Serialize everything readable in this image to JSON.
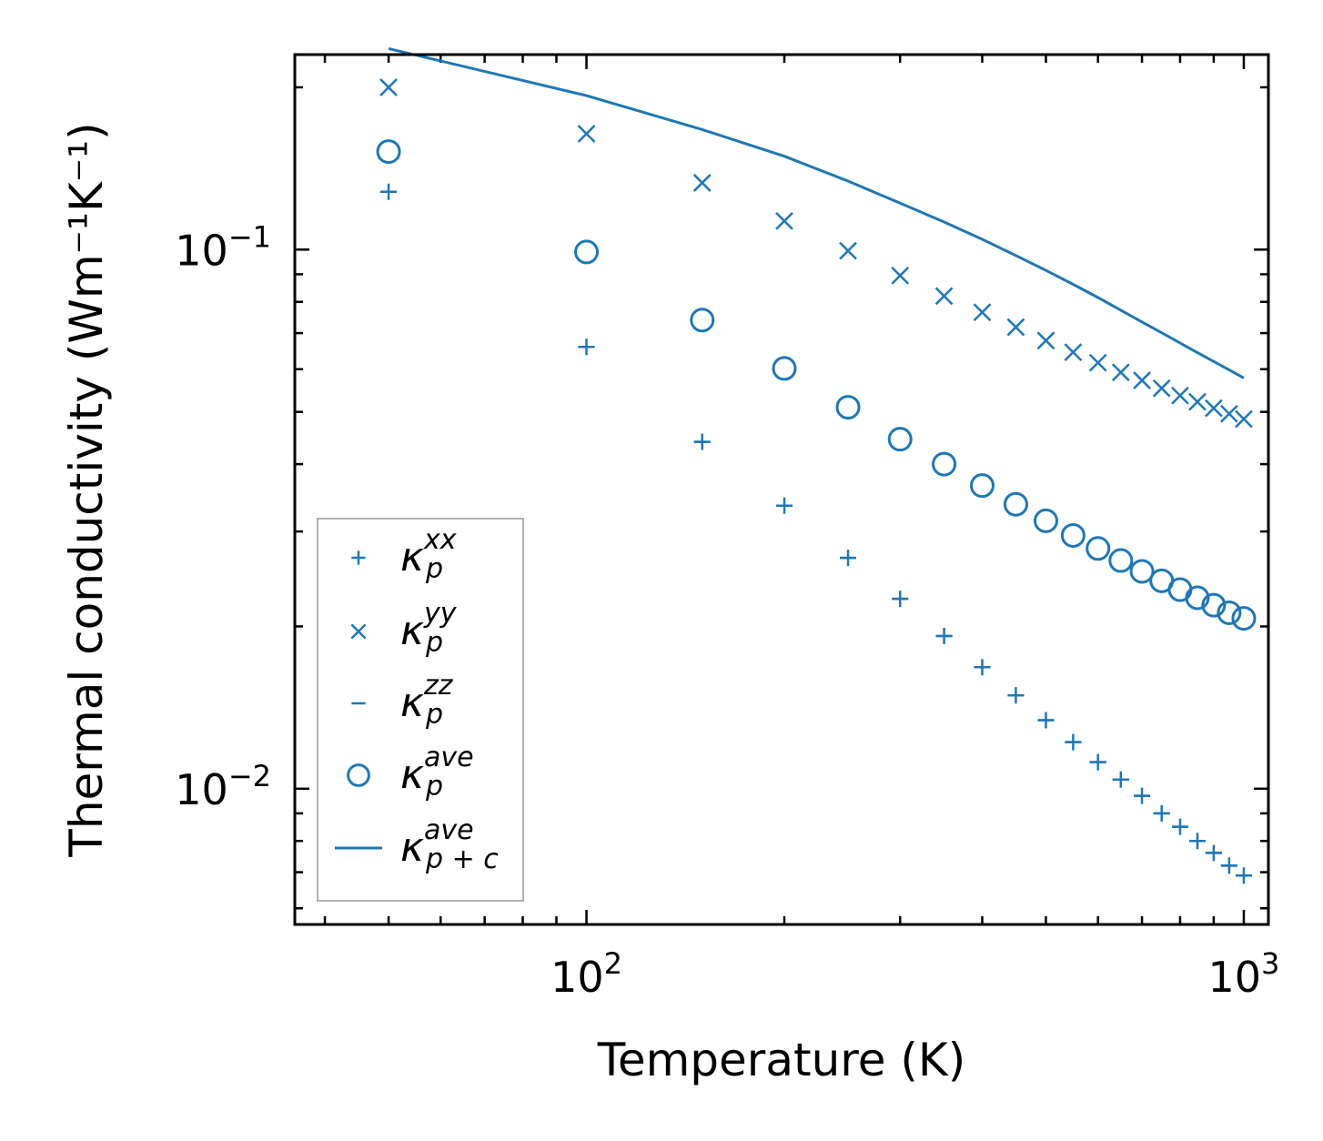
{
  "chart_data": {
    "type": "scatter",
    "xscale": "log",
    "yscale": "log",
    "xlabel": "Temperature (K)",
    "ylabel": "Thermal conductivity (Wm⁻¹K⁻¹)",
    "xlim": [
      36,
      1090
    ],
    "ylim": [
      0.0056,
      0.23
    ],
    "x_major_ticks": [
      {
        "value": 100,
        "base": "10",
        "exp": "2"
      },
      {
        "value": 1000,
        "base": "10",
        "exp": "3"
      }
    ],
    "y_major_ticks": [
      {
        "value": 0.01,
        "base": "10",
        "exp": "−2"
      },
      {
        "value": 0.1,
        "base": "10",
        "exp": "−1"
      }
    ],
    "legend_position": "lower-left",
    "color": "#1f77b4",
    "x": [
      50,
      100,
      150,
      200,
      250,
      300,
      350,
      400,
      450,
      500,
      550,
      600,
      650,
      700,
      750,
      800,
      850,
      900,
      950,
      1000
    ],
    "series": [
      {
        "name": "kappa_p_xx",
        "base": "κ",
        "sub": "p",
        "sup": "xx",
        "marker": "plus",
        "values": [
          0.128,
          0.066,
          0.044,
          0.0335,
          0.0268,
          0.0225,
          0.0192,
          0.0168,
          0.0149,
          0.0134,
          0.0122,
          0.0112,
          0.0104,
          0.0097,
          0.009,
          0.0085,
          0.008,
          0.0076,
          0.0072,
          0.0069
        ]
      },
      {
        "name": "kappa_p_yy",
        "base": "κ",
        "sub": "p",
        "sup": "yy",
        "marker": "x",
        "values": [
          0.2,
          0.164,
          0.133,
          0.113,
          0.0995,
          0.0895,
          0.082,
          0.0765,
          0.0718,
          0.0678,
          0.0645,
          0.0617,
          0.0592,
          0.0572,
          0.0553,
          0.0536,
          0.0522,
          0.0508,
          0.0496,
          0.0485
        ]
      },
      {
        "name": "kappa_p_zz",
        "base": "κ",
        "sub": "p",
        "sup": "zz",
        "marker": "hline",
        "values": [
          0.128,
          0.066,
          0.044,
          0.0335,
          0.0268,
          0.0225,
          0.0192,
          0.0168,
          0.0149,
          0.0134,
          0.0122,
          0.0112,
          0.0104,
          0.0097,
          0.009,
          0.0085,
          0.008,
          0.0076,
          0.0072,
          0.0069
        ]
      },
      {
        "name": "kappa_p_ave",
        "base": "κ",
        "sub": "p",
        "sup": "ave",
        "marker": "circle",
        "values": [
          0.152,
          0.099,
          0.074,
          0.0602,
          0.051,
          0.0445,
          0.04,
          0.0365,
          0.0337,
          0.0314,
          0.0295,
          0.0279,
          0.0265,
          0.0253,
          0.0243,
          0.0234,
          0.0226,
          0.0219,
          0.0212,
          0.0207
        ]
      },
      {
        "name": "kappa_p+c_ave",
        "base": "κ",
        "sub": "p + c",
        "sup": "ave",
        "marker": "line",
        "values": [
          0.236,
          0.193,
          0.167,
          0.149,
          0.134,
          0.122,
          0.1125,
          0.1045,
          0.0975,
          0.0915,
          0.0862,
          0.0815,
          0.0772,
          0.0734,
          0.0701,
          0.0671,
          0.0644,
          0.062,
          0.0598,
          0.0578
        ]
      }
    ]
  }
}
